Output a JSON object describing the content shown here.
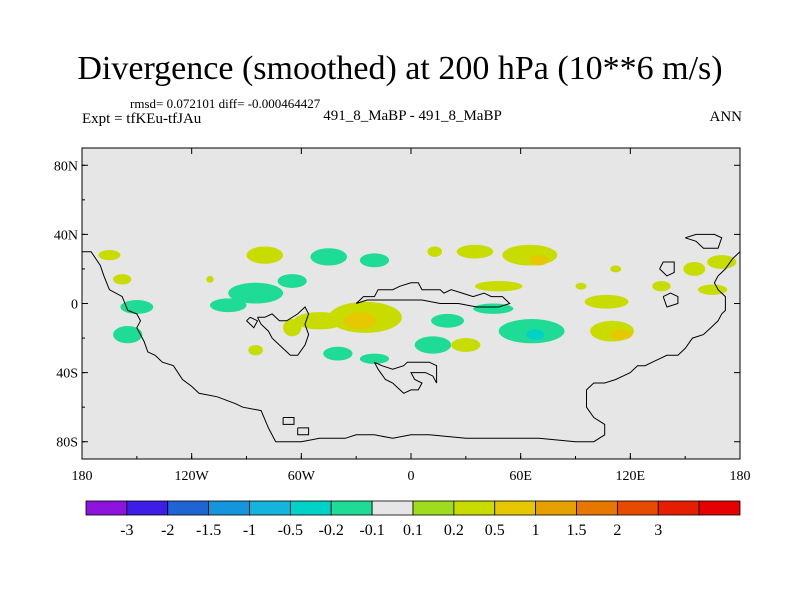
{
  "header": {
    "title": "Divergence (smoothed) at 200 hPa (10**6 m/s)",
    "stats": "rmsd= 0.072101 diff= -0.000464427",
    "experiment": "Expt = tfKEu-tfJAu",
    "case": "491_8_MaBP - 491_8_MaBP",
    "season": "ANN"
  },
  "map": {
    "projection": "cylindrical equidistant",
    "lon_range": [
      -180,
      180
    ],
    "lat_range": [
      -90,
      90
    ],
    "background_color": "#e6e6e6",
    "y_ticks": [
      {
        "lat": 80,
        "label": "80N"
      },
      {
        "lat": 40,
        "label": "40N"
      },
      {
        "lat": 0,
        "label": "0"
      },
      {
        "lat": -40,
        "label": "40S"
      },
      {
        "lat": -80,
        "label": "80S"
      }
    ],
    "x_ticks": [
      {
        "lon": -180,
        "label": "180"
      },
      {
        "lon": -120,
        "label": "120W"
      },
      {
        "lon": -60,
        "label": "60W"
      },
      {
        "lon": 0,
        "label": "0"
      },
      {
        "lon": 60,
        "label": "60E"
      },
      {
        "lon": 120,
        "label": "120E"
      },
      {
        "lon": 180,
        "label": "180"
      }
    ],
    "blobs": [
      {
        "lon": -165,
        "lat": 28,
        "rx": 6,
        "ry": 3,
        "level": 0.2
      },
      {
        "lon": -158,
        "lat": 14,
        "rx": 5,
        "ry": 3,
        "level": 0.2
      },
      {
        "lon": -150,
        "lat": -2,
        "rx": 9,
        "ry": 4,
        "level": -0.2
      },
      {
        "lon": -155,
        "lat": -18,
        "rx": 8,
        "ry": 5,
        "level": -0.2
      },
      {
        "lon": -110,
        "lat": 14,
        "rx": 2,
        "ry": 2,
        "level": 0.2
      },
      {
        "lon": -80,
        "lat": 28,
        "rx": 10,
        "ry": 5,
        "level": 0.2
      },
      {
        "lon": -85,
        "lat": 6,
        "rx": 15,
        "ry": 6,
        "level": -0.2
      },
      {
        "lon": -100,
        "lat": -1,
        "rx": 10,
        "ry": 4,
        "level": -0.2
      },
      {
        "lon": -65,
        "lat": 13,
        "rx": 8,
        "ry": 4,
        "level": -0.2
      },
      {
        "lon": -45,
        "lat": 27,
        "rx": 10,
        "ry": 5,
        "level": -0.2
      },
      {
        "lon": -20,
        "lat": 25,
        "rx": 8,
        "ry": 4,
        "level": -0.2
      },
      {
        "lon": -65,
        "lat": -14,
        "rx": 5,
        "ry": 5,
        "level": 0.2
      },
      {
        "lon": -50,
        "lat": -10,
        "rx": 14,
        "ry": 5,
        "level": 0.2
      },
      {
        "lon": -25,
        "lat": -8,
        "rx": 20,
        "ry": 9,
        "level": 0.2
      },
      {
        "lon": -28,
        "lat": -10,
        "rx": 9,
        "ry": 5,
        "level": 0.5
      },
      {
        "lon": -85,
        "lat": -27,
        "rx": 4,
        "ry": 3,
        "level": 0.2
      },
      {
        "lon": -40,
        "lat": -29,
        "rx": 8,
        "ry": 4,
        "level": -0.2
      },
      {
        "lon": -20,
        "lat": -32,
        "rx": 8,
        "ry": 3,
        "level": -0.2
      },
      {
        "lon": 12,
        "lat": -24,
        "rx": 10,
        "ry": 5,
        "level": -0.2
      },
      {
        "lon": 13,
        "lat": 30,
        "rx": 4,
        "ry": 3,
        "level": 0.2
      },
      {
        "lon": 35,
        "lat": 30,
        "rx": 10,
        "ry": 4,
        "level": 0.2
      },
      {
        "lon": 65,
        "lat": 28,
        "rx": 15,
        "ry": 6,
        "level": 0.2
      },
      {
        "lon": 70,
        "lat": 25,
        "rx": 5,
        "ry": 3,
        "level": 0.5
      },
      {
        "lon": 48,
        "lat": 10,
        "rx": 13,
        "ry": 3,
        "level": 0.2
      },
      {
        "lon": 45,
        "lat": -3,
        "rx": 11,
        "ry": 3,
        "level": -0.2
      },
      {
        "lon": 20,
        "lat": -10,
        "rx": 9,
        "ry": 4,
        "level": -0.2
      },
      {
        "lon": 30,
        "lat": -24,
        "rx": 8,
        "ry": 4,
        "level": 0.2
      },
      {
        "lon": 66,
        "lat": -16,
        "rx": 18,
        "ry": 7,
        "level": -0.2
      },
      {
        "lon": 68,
        "lat": -18,
        "rx": 5,
        "ry": 3,
        "level": -0.5
      },
      {
        "lon": 110,
        "lat": -16,
        "rx": 12,
        "ry": 6,
        "level": 0.2
      },
      {
        "lon": 115,
        "lat": -18,
        "rx": 6,
        "ry": 3,
        "level": 0.5
      },
      {
        "lon": 107,
        "lat": 1,
        "rx": 12,
        "ry": 4,
        "level": 0.2
      },
      {
        "lon": 93,
        "lat": 10,
        "rx": 3,
        "ry": 2,
        "level": 0.2
      },
      {
        "lon": 137,
        "lat": 10,
        "rx": 5,
        "ry": 3,
        "level": 0.2
      },
      {
        "lon": 155,
        "lat": 20,
        "rx": 6,
        "ry": 4,
        "level": 0.2
      },
      {
        "lon": 170,
        "lat": 24,
        "rx": 8,
        "ry": 4,
        "level": 0.2
      },
      {
        "lon": 165,
        "lat": 8,
        "rx": 8,
        "ry": 3,
        "level": 0.2
      },
      {
        "lon": 112,
        "lat": 20,
        "rx": 3,
        "ry": 2,
        "level": 0.2
      }
    ],
    "coastlines": [
      [
        [
          -180,
          30
        ],
        [
          -175,
          30
        ],
        [
          -170,
          22
        ],
        [
          -168,
          16
        ],
        [
          -165,
          8
        ],
        [
          -158,
          4
        ],
        [
          -155,
          -4
        ],
        [
          -150,
          -6
        ],
        [
          -148,
          -10
        ],
        [
          -150,
          -14
        ],
        [
          -146,
          -22
        ],
        [
          -144,
          -28
        ],
        [
          -140,
          -30
        ],
        [
          -136,
          -34
        ],
        [
          -130,
          -36
        ],
        [
          -125,
          -44
        ],
        [
          -120,
          -48
        ],
        [
          -116,
          -52
        ],
        [
          -106,
          -54
        ],
        [
          -96,
          -58
        ],
        [
          -92,
          -60
        ],
        [
          -82,
          -62
        ],
        [
          -78,
          -72
        ],
        [
          -74,
          -80
        ],
        [
          -66,
          -80
        ],
        [
          -60,
          -80
        ],
        [
          -50,
          -78
        ],
        [
          -36,
          -78
        ],
        [
          -30,
          -76
        ],
        [
          -20,
          -76
        ],
        [
          -10,
          -78
        ],
        [
          0,
          -76
        ],
        [
          10,
          -76
        ],
        [
          30,
          -78
        ],
        [
          50,
          -78
        ],
        [
          70,
          -78
        ],
        [
          90,
          -80
        ],
        [
          100,
          -80
        ],
        [
          106,
          -76
        ],
        [
          106,
          -70
        ],
        [
          100,
          -66
        ],
        [
          96,
          -60
        ],
        [
          96,
          -50
        ],
        [
          100,
          -46
        ],
        [
          106,
          -46
        ],
        [
          112,
          -44
        ],
        [
          116,
          -42
        ],
        [
          120,
          -40
        ],
        [
          124,
          -36
        ],
        [
          128,
          -36
        ],
        [
          132,
          -34
        ],
        [
          140,
          -30
        ],
        [
          146,
          -30
        ],
        [
          150,
          -26
        ],
        [
          154,
          -20
        ],
        [
          160,
          -18
        ],
        [
          164,
          -14
        ],
        [
          168,
          -10
        ],
        [
          170,
          -6
        ],
        [
          172,
          -4
        ],
        [
          172,
          4
        ],
        [
          168,
          8
        ],
        [
          166,
          12
        ],
        [
          168,
          16
        ],
        [
          172,
          20
        ],
        [
          176,
          26
        ],
        [
          180,
          30
        ]
      ],
      [
        [
          -84,
          -8
        ],
        [
          -82,
          -12
        ],
        [
          -78,
          -16
        ],
        [
          -76,
          -20
        ],
        [
          -72,
          -24
        ],
        [
          -66,
          -30
        ],
        [
          -62,
          -30
        ],
        [
          -58,
          -24
        ],
        [
          -56,
          -18
        ],
        [
          -58,
          -12
        ],
        [
          -56,
          -6
        ],
        [
          -58,
          -2
        ],
        [
          -62,
          -6
        ],
        [
          -68,
          -10
        ],
        [
          -72,
          -10
        ],
        [
          -76,
          -6
        ],
        [
          -80,
          -8
        ],
        [
          -84,
          -8
        ]
      ],
      [
        [
          -20,
          -34
        ],
        [
          -18,
          -38
        ],
        [
          -14,
          -44
        ],
        [
          -10,
          -46
        ],
        [
          -6,
          -50
        ],
        [
          -4,
          -52
        ],
        [
          0,
          -50
        ],
        [
          4,
          -50
        ],
        [
          6,
          -46
        ],
        [
          2,
          -44
        ],
        [
          0,
          -40
        ],
        [
          8,
          -40
        ],
        [
          12,
          -42
        ],
        [
          14,
          -46
        ],
        [
          14,
          -36
        ],
        [
          10,
          -34
        ],
        [
          -2,
          -34
        ],
        [
          -4,
          -36
        ],
        [
          -10,
          -38
        ],
        [
          -16,
          -36
        ],
        [
          -20,
          -34
        ]
      ],
      [
        [
          -30,
          0
        ],
        [
          -26,
          4
        ],
        [
          -20,
          4
        ],
        [
          -18,
          8
        ],
        [
          -10,
          8
        ],
        [
          -6,
          10
        ],
        [
          0,
          12
        ],
        [
          4,
          12
        ],
        [
          6,
          8
        ],
        [
          10,
          8
        ],
        [
          16,
          8
        ],
        [
          18,
          6
        ],
        [
          22,
          8
        ],
        [
          28,
          6
        ],
        [
          34,
          4
        ],
        [
          40,
          6
        ],
        [
          44,
          4
        ],
        [
          50,
          4
        ],
        [
          54,
          0
        ],
        [
          48,
          -2
        ],
        [
          36,
          -2
        ],
        [
          26,
          0
        ],
        [
          16,
          0
        ],
        [
          6,
          2
        ],
        [
          -4,
          2
        ],
        [
          -14,
          2
        ],
        [
          -24,
          2
        ],
        [
          -30,
          0
        ]
      ],
      [
        [
          150,
          38
        ],
        [
          156,
          40
        ],
        [
          166,
          40
        ],
        [
          170,
          38
        ],
        [
          168,
          32
        ],
        [
          160,
          32
        ],
        [
          156,
          36
        ],
        [
          150,
          38
        ]
      ],
      [
        [
          136,
          20
        ],
        [
          138,
          24
        ],
        [
          144,
          24
        ],
        [
          144,
          18
        ],
        [
          140,
          16
        ],
        [
          136,
          20
        ]
      ],
      [
        [
          138,
          4
        ],
        [
          142,
          6
        ],
        [
          146,
          4
        ],
        [
          146,
          0
        ],
        [
          140,
          -2
        ],
        [
          138,
          4
        ]
      ],
      [
        [
          -90,
          -10
        ],
        [
          -88,
          -8
        ],
        [
          -84,
          -10
        ],
        [
          -86,
          -14
        ],
        [
          -90,
          -10
        ]
      ],
      [
        [
          -70,
          -66
        ],
        [
          -64,
          -66
        ],
        [
          -64,
          -70
        ],
        [
          -70,
          -70
        ],
        [
          -70,
          -66
        ]
      ],
      [
        [
          -62,
          -72
        ],
        [
          -56,
          -72
        ],
        [
          -56,
          -76
        ],
        [
          -62,
          -76
        ],
        [
          -62,
          -72
        ]
      ]
    ]
  },
  "colorbar": {
    "colors": [
      "#8c14dc",
      "#3c1ee6",
      "#1e64d2",
      "#1496dc",
      "#14b4dc",
      "#00d2c8",
      "#1edc96",
      "#e6e6e6",
      "#a0dc1e",
      "#c8dc00",
      "#e6c800",
      "#e6a000",
      "#e67800",
      "#e64b00",
      "#e61e00",
      "#e60000"
    ],
    "labels": [
      "-3",
      "-2",
      "-1.5",
      "-1",
      "-0.5",
      "-0.2",
      "-0.1",
      "0.1",
      "0.2",
      "0.5",
      "1",
      "1.5",
      "2",
      "3"
    ]
  }
}
